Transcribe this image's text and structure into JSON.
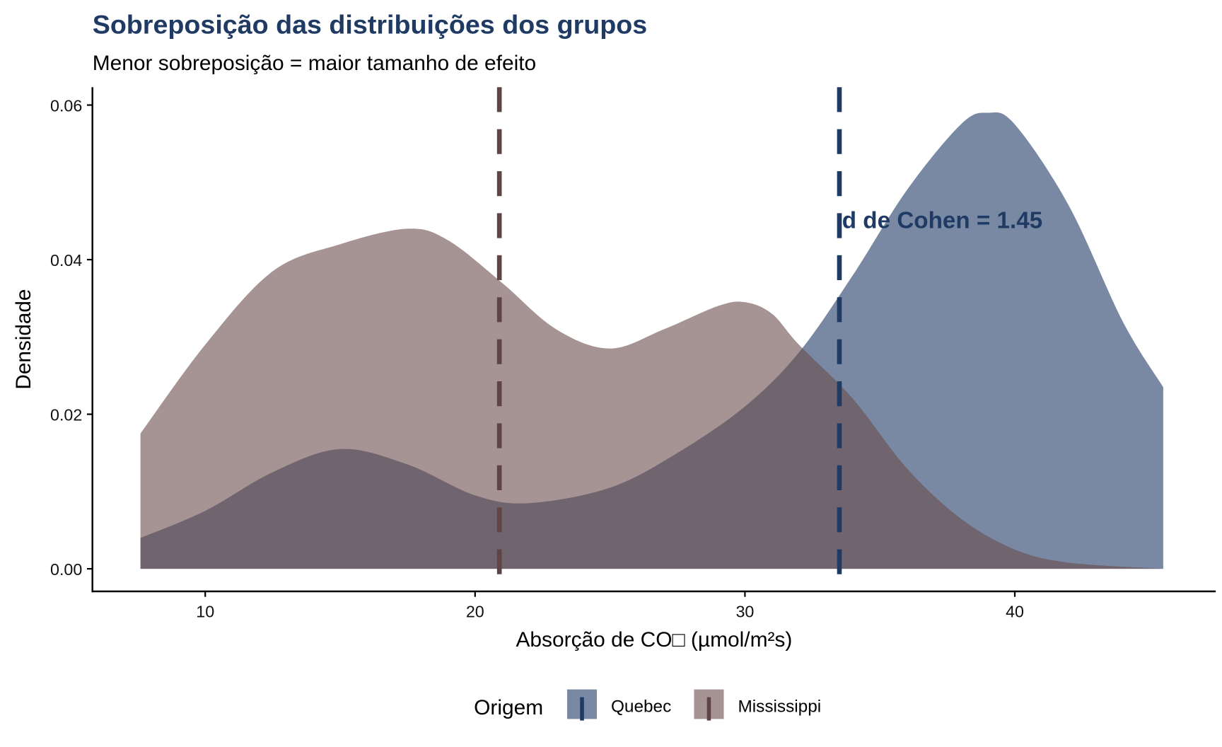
{
  "chart_data": {
    "type": "area",
    "title": "Sobreposição das distribuições dos grupos",
    "subtitle": "Menor sobreposição = maior tamanho de efeito",
    "xlabel": "Absorção de CO□ (µmol/m²s)",
    "ylabel": "Densidade",
    "xlim": [
      6,
      47.5
    ],
    "ylim": [
      -0.003,
      0.062
    ],
    "x_ticks": [
      10,
      20,
      30,
      40
    ],
    "x_tick_labels": [
      "10",
      "20",
      "30",
      "40"
    ],
    "y_ticks": [
      0,
      0.02,
      0.04,
      0.06
    ],
    "y_tick_labels": [
      "0.00",
      "0.02",
      "0.04",
      "0.06"
    ],
    "grid": false,
    "legend": {
      "title": "Origem",
      "placement": "bottom"
    },
    "series": [
      {
        "name": "Quebec",
        "fill": "#1f3a68",
        "line_color": "#1f3a63",
        "mean": 33.5,
        "x": [
          7.6,
          10,
          12.5,
          15,
          17.5,
          20,
          22,
          25,
          27.5,
          30,
          32,
          34,
          36,
          38,
          39,
          40,
          42,
          44,
          45.5
        ],
        "y": [
          0.004,
          0.0075,
          0.0125,
          0.0155,
          0.0135,
          0.0095,
          0.0085,
          0.0105,
          0.015,
          0.021,
          0.028,
          0.038,
          0.049,
          0.0575,
          0.059,
          0.0575,
          0.047,
          0.032,
          0.0235
        ]
      },
      {
        "name": "Mississippi",
        "fill": "#6b4c4c",
        "line_color": "#5e4444",
        "mean": 20.9,
        "x": [
          7.6,
          10,
          12.5,
          15,
          17.5,
          19,
          21,
          23,
          25,
          27,
          29,
          30,
          31,
          32,
          34,
          36,
          38,
          40,
          42,
          45.5
        ],
        "y": [
          0.0175,
          0.029,
          0.0385,
          0.042,
          0.044,
          0.0425,
          0.037,
          0.031,
          0.0285,
          0.031,
          0.034,
          0.0345,
          0.033,
          0.029,
          0.022,
          0.013,
          0.0065,
          0.0025,
          0.0008,
          0.0
        ]
      }
    ],
    "annotation": {
      "text": "d de Cohen = 1.45",
      "x": 33.6,
      "y": 0.0452
    }
  }
}
